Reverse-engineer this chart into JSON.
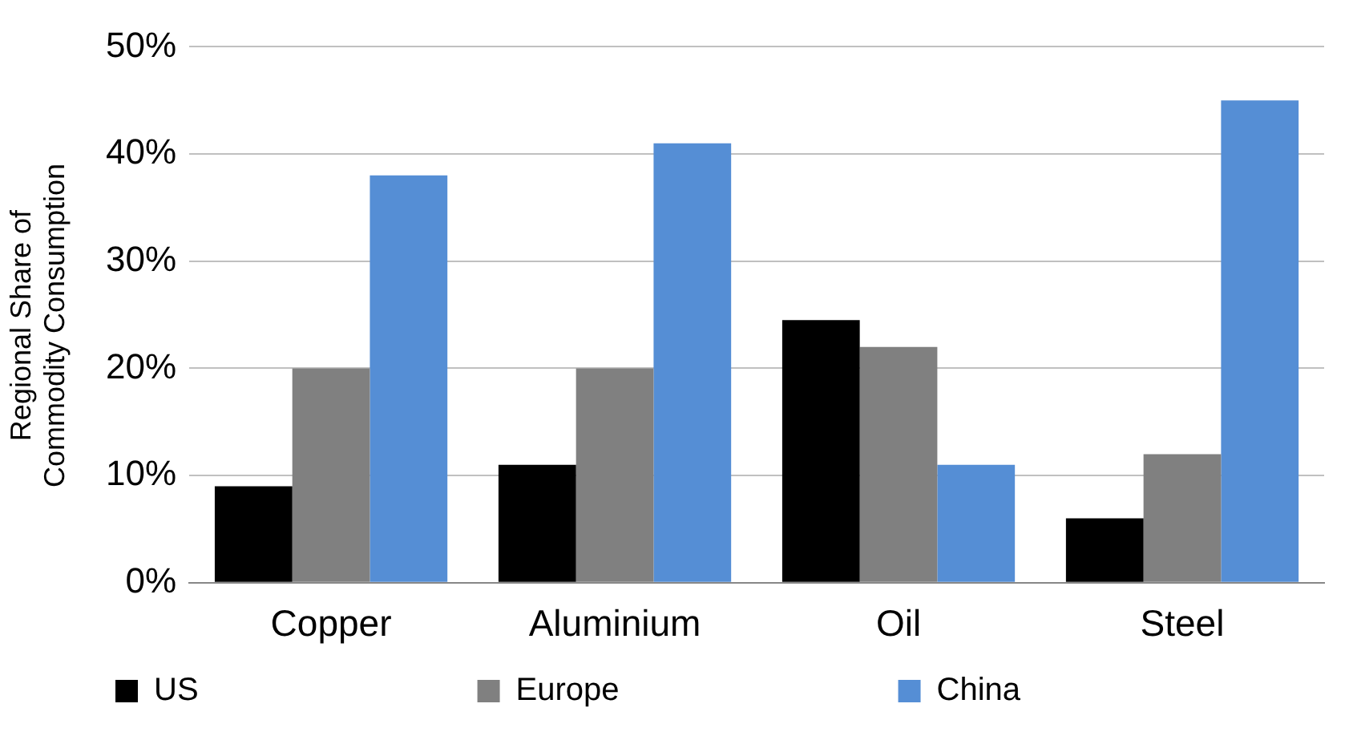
{
  "chart_data": {
    "type": "bar",
    "ylabel": "Regional Share of Commodity Consumption",
    "categories": [
      "Copper",
      "Aluminium",
      "Oil",
      "Steel"
    ],
    "series": [
      {
        "name": "US",
        "color": "#000000",
        "values": [
          9,
          11,
          24.5,
          6
        ]
      },
      {
        "name": "Europe",
        "color": "#808080",
        "values": [
          20,
          20,
          22,
          12
        ]
      },
      {
        "name": "China",
        "color": "#558ed5",
        "values": [
          38,
          41,
          11,
          45
        ]
      }
    ],
    "ylim": [
      0,
      50
    ],
    "yticks": [
      {
        "value": 0,
        "label": "0%"
      },
      {
        "value": 10,
        "label": "10%"
      },
      {
        "value": 20,
        "label": "20%"
      },
      {
        "value": 30,
        "label": "30%"
      },
      {
        "value": 40,
        "label": "40%"
      },
      {
        "value": 50,
        "label": "50%"
      }
    ],
    "grid": "y",
    "legend": "bottom"
  }
}
